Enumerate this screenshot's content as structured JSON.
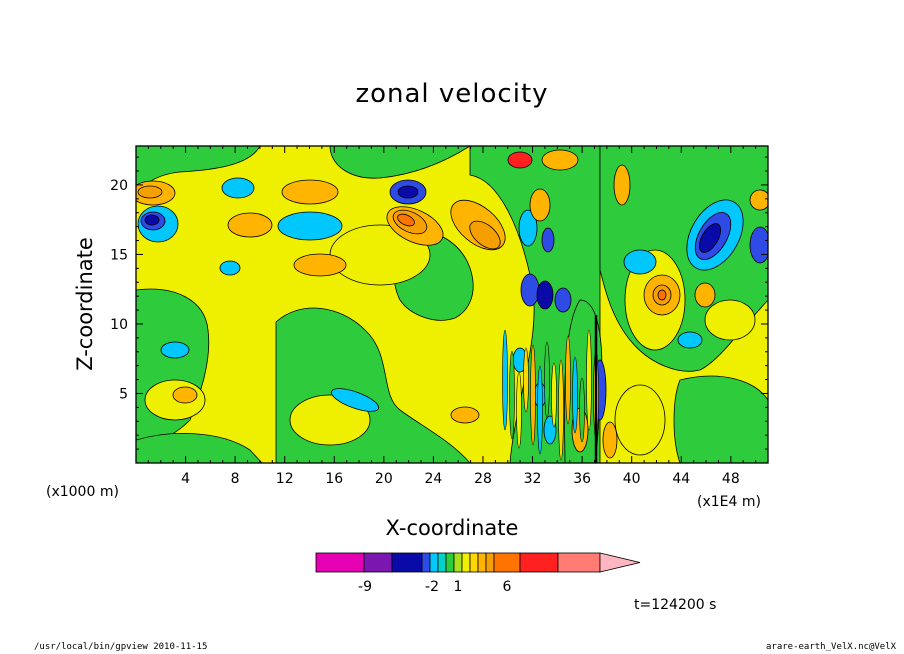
{
  "chart_data": {
    "type": "heatmap",
    "title": "zonal velocity",
    "xlabel": "X-coordinate",
    "ylabel": "Z-coordinate",
    "x_unit": "(x1000 m)",
    "y_unit": "(x1E4 m)",
    "xlim": [
      0,
      51
    ],
    "ylim": [
      0,
      22.8
    ],
    "x_ticks": [
      4,
      8,
      12,
      16,
      20,
      24,
      28,
      32,
      36,
      40,
      44,
      48
    ],
    "y_ticks": [
      5,
      10,
      15,
      20
    ],
    "colorbar": {
      "tick_labels": [
        "-9",
        "-2",
        "1",
        "6"
      ],
      "colors": [
        "#e600b4",
        "#7a17b0",
        "#0a0aa8",
        "#2f4be6",
        "#00c8ff",
        "#00d2c8",
        "#2ecc3c",
        "#a8e21e",
        "#eef000",
        "#ffd700",
        "#ffb400",
        "#f5a000",
        "#ff7300",
        "#ff2020",
        "#ff7b74",
        "#ffb6c0"
      ]
    },
    "time_label": "t=124200 s",
    "grid": false
  },
  "footer": {
    "left": "/usr/local/bin/gpview  2010-11-15",
    "right": "arare-earth_VelX.nc@VelX"
  }
}
